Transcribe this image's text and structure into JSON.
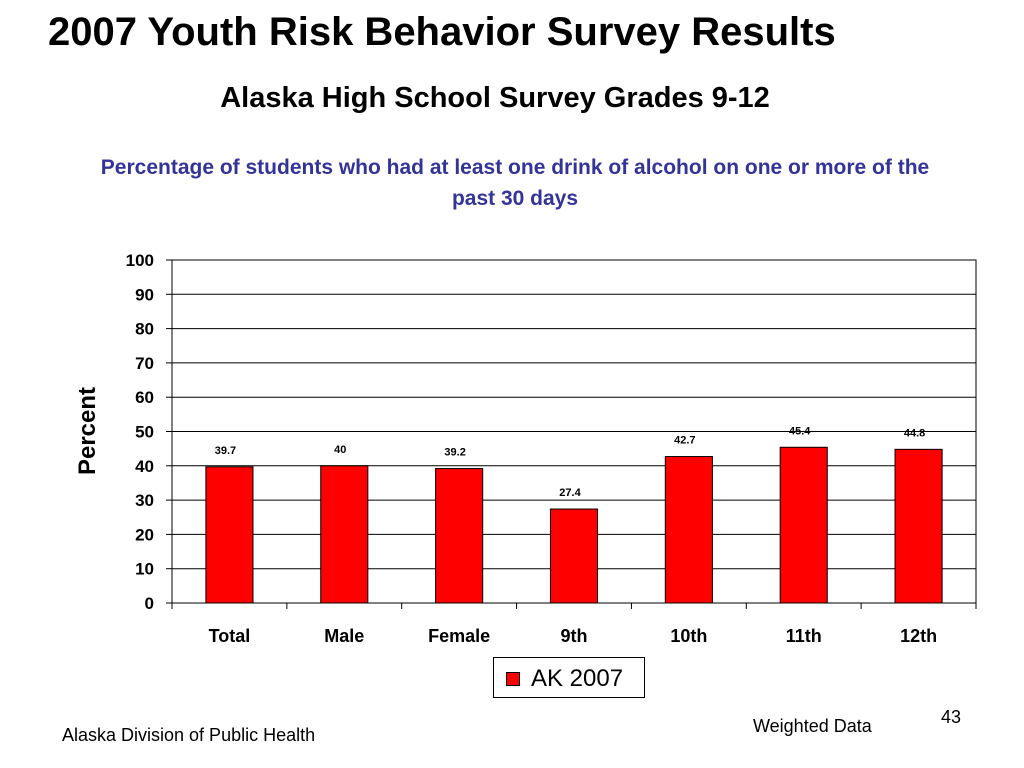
{
  "slide": {
    "title": "2007 Youth Risk Behavior Survey Results",
    "subtitle": "Alaska High School Survey Grades 9-12",
    "footer_left": "Alaska Division of Public Health",
    "footer_note": "Weighted Data",
    "page_number": "43"
  },
  "colors": {
    "bar": "#ff0000",
    "title_blue": "#333399"
  },
  "chart_data": {
    "type": "bar",
    "title": "Percentage of students who had at least one drink of alcohol on one or more of the past 30 days",
    "xlabel": "",
    "ylabel": "Percent",
    "ylim": [
      0,
      100
    ],
    "yticks": [
      0,
      10,
      20,
      30,
      40,
      50,
      60,
      70,
      80,
      90,
      100
    ],
    "grid": true,
    "legend_position": "bottom",
    "categories": [
      "Total",
      "Male",
      "Female",
      "9th",
      "10th",
      "11th",
      "12th"
    ],
    "series": [
      {
        "name": "AK 2007",
        "values": [
          39.7,
          40,
          39.2,
          27.4,
          42.7,
          45.4,
          44.8
        ],
        "labels": [
          "39.7",
          "40",
          "39.2",
          "27.4",
          "42.7",
          "45.4",
          "44.8"
        ]
      }
    ]
  }
}
